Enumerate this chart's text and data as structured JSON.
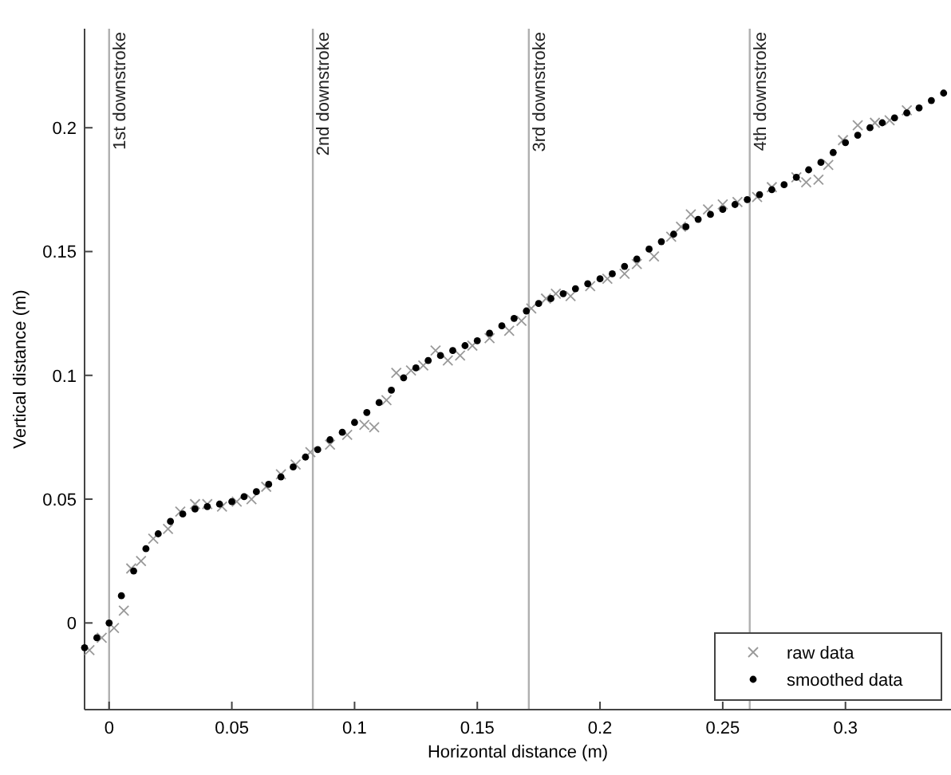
{
  "chart_data": {
    "type": "scatter",
    "xlabel": "Horizontal distance (m)",
    "ylabel": "Vertical distance (m)",
    "xlim": [
      -0.01,
      0.343
    ],
    "ylim": [
      -0.035,
      0.24
    ],
    "xticks": [
      0,
      0.05,
      0.1,
      0.15,
      0.2,
      0.25,
      0.3
    ],
    "yticks": [
      0,
      0.05,
      0.1,
      0.15,
      0.2
    ],
    "grid": false,
    "legend": "bottom right",
    "ref_lines": [
      {
        "axis": "x",
        "value": 0,
        "label": "1st downstroke",
        "color": "#b0b0b0"
      },
      {
        "axis": "x",
        "value": 0.083,
        "label": "2nd downstroke",
        "color": "#b0b0b0"
      },
      {
        "axis": "x",
        "value": 0.171,
        "label": "3rd downstroke",
        "color": "#b0b0b0"
      },
      {
        "axis": "x",
        "value": 0.261,
        "label": "4th downstroke",
        "color": "#b0b0b0"
      }
    ],
    "series": [
      {
        "name": "raw data",
        "color": "#999999",
        "marker": "cross",
        "x": [
          -0.008,
          -0.003,
          0.002,
          0.006,
          0.009,
          0.013,
          0.018,
          0.024,
          0.029,
          0.035,
          0.04,
          0.046,
          0.052,
          0.058,
          0.064,
          0.07,
          0.076,
          0.082,
          0.09,
          0.097,
          0.104,
          0.108,
          0.113,
          0.117,
          0.123,
          0.128,
          0.133,
          0.138,
          0.143,
          0.148,
          0.155,
          0.163,
          0.168,
          0.172,
          0.178,
          0.182,
          0.188,
          0.196,
          0.203,
          0.21,
          0.215,
          0.222,
          0.229,
          0.233,
          0.237,
          0.244,
          0.25,
          0.256,
          0.264,
          0.27,
          0.28,
          0.284,
          0.289,
          0.293,
          0.299,
          0.305,
          0.312,
          0.318,
          0.325
        ],
        "values": [
          -0.011,
          -0.006,
          -0.002,
          0.005,
          0.022,
          0.025,
          0.034,
          0.038,
          0.045,
          0.048,
          0.048,
          0.047,
          0.049,
          0.05,
          0.055,
          0.06,
          0.064,
          0.069,
          0.072,
          0.076,
          0.08,
          0.079,
          0.09,
          0.101,
          0.102,
          0.104,
          0.11,
          0.106,
          0.108,
          0.112,
          0.115,
          0.118,
          0.122,
          0.127,
          0.131,
          0.133,
          0.132,
          0.136,
          0.139,
          0.141,
          0.145,
          0.148,
          0.156,
          0.16,
          0.165,
          0.167,
          0.169,
          0.17,
          0.172,
          0.176,
          0.18,
          0.178,
          0.179,
          0.185,
          0.195,
          0.201,
          0.202,
          0.203,
          0.207
        ]
      },
      {
        "name": "smoothed data",
        "color": "#000000",
        "marker": "circle",
        "x": [
          -0.01,
          -0.005,
          0.0,
          0.005,
          0.01,
          0.015,
          0.02,
          0.025,
          0.03,
          0.035,
          0.04,
          0.045,
          0.05,
          0.055,
          0.06,
          0.065,
          0.07,
          0.075,
          0.08,
          0.085,
          0.09,
          0.095,
          0.1,
          0.105,
          0.11,
          0.115,
          0.12,
          0.125,
          0.13,
          0.135,
          0.14,
          0.145,
          0.15,
          0.155,
          0.16,
          0.165,
          0.17,
          0.175,
          0.18,
          0.185,
          0.19,
          0.195,
          0.2,
          0.205,
          0.21,
          0.215,
          0.22,
          0.225,
          0.23,
          0.235,
          0.24,
          0.245,
          0.25,
          0.255,
          0.26,
          0.265,
          0.27,
          0.275,
          0.28,
          0.285,
          0.29,
          0.295,
          0.3,
          0.305,
          0.31,
          0.315,
          0.32,
          0.325,
          0.33,
          0.335,
          0.34
        ],
        "values": [
          -0.01,
          -0.006,
          0.0,
          0.011,
          0.021,
          0.03,
          0.036,
          0.041,
          0.044,
          0.046,
          0.047,
          0.048,
          0.049,
          0.051,
          0.053,
          0.056,
          0.059,
          0.063,
          0.067,
          0.07,
          0.074,
          0.077,
          0.081,
          0.085,
          0.089,
          0.094,
          0.099,
          0.103,
          0.106,
          0.108,
          0.11,
          0.112,
          0.114,
          0.117,
          0.12,
          0.123,
          0.126,
          0.129,
          0.131,
          0.133,
          0.135,
          0.137,
          0.139,
          0.141,
          0.144,
          0.147,
          0.151,
          0.154,
          0.157,
          0.16,
          0.163,
          0.165,
          0.167,
          0.169,
          0.171,
          0.173,
          0.175,
          0.177,
          0.18,
          0.183,
          0.186,
          0.19,
          0.194,
          0.197,
          0.2,
          0.202,
          0.204,
          0.206,
          0.208,
          0.211,
          0.214
        ]
      }
    ]
  }
}
